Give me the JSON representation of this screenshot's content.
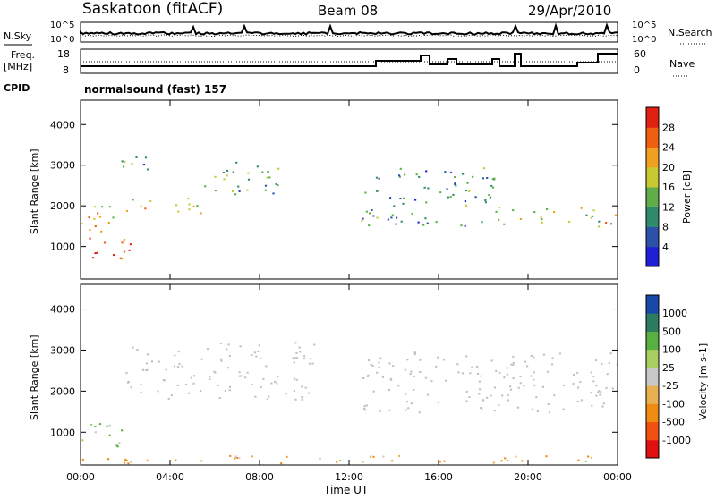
{
  "header": {
    "station": "Saskatoon (fitACF)",
    "beam": "Beam 08",
    "date": "29/Apr/2010"
  },
  "top_panels": {
    "nsky_label": "N.Sky",
    "nsearch_label": "N.Search",
    "noise_ticks": [
      "10^5",
      "10^0"
    ],
    "freq_label": "Freq.",
    "freq_unit": "[MHz]",
    "freq_ticks": [
      "18",
      "8"
    ],
    "nave_label": "Nave",
    "nave_ticks": [
      "60",
      "0"
    ],
    "cpid_label": "CPID",
    "cpid_value": "normalsound (fast) 157"
  },
  "colors": {
    "power_scale": [
      "#1f1fd8",
      "#2b52a8",
      "#2f8a6e",
      "#5fae4a",
      "#c8c832",
      "#f0a020",
      "#f06010",
      "#e02010"
    ],
    "velocity_scale": [
      "#e01010",
      "#f05010",
      "#f08a10",
      "#e8b050",
      "#c8c8c8",
      "#a8d060",
      "#58b040",
      "#2c7c60",
      "#1848a8"
    ],
    "ground_scatter": "#c0c0c0"
  },
  "chart_data": [
    {
      "type": "heatmap",
      "title": "Power",
      "xlabel": "Time UT",
      "ylabel": "Slant Range [km]",
      "x_ticks": [
        "00:00",
        "04:00",
        "08:00",
        "12:00",
        "16:00",
        "20:00",
        "00:00"
      ],
      "x_range_hours": [
        0,
        24
      ],
      "y_ticks": [
        1000,
        2000,
        3000,
        4000
      ],
      "y_range_km": [
        200,
        4600
      ],
      "colorbar": {
        "label": "Power [dB]",
        "ticks": [
          4,
          8,
          12,
          16,
          20,
          24,
          28
        ],
        "range": [
          0,
          32
        ]
      },
      "scatter_regions": [
        {
          "t0": 0.0,
          "t1": 2.2,
          "r0": 600,
          "r1": 1300,
          "value": 28
        },
        {
          "t0": 0.0,
          "t1": 1.5,
          "r0": 1300,
          "r1": 2300,
          "value": 20
        },
        {
          "t0": 2.0,
          "t1": 5.5,
          "r0": 1750,
          "r1": 2200,
          "value": 20
        },
        {
          "t0": 5.5,
          "t1": 9.5,
          "r0": 2300,
          "r1": 3100,
          "value": 12
        },
        {
          "t0": 1.2,
          "t1": 3.0,
          "r0": 2900,
          "r1": 3400,
          "value": 10
        },
        {
          "t0": 12.5,
          "t1": 18.5,
          "r0": 1500,
          "r1": 3000,
          "value": 10
        },
        {
          "t0": 18.5,
          "t1": 24.0,
          "r0": 1500,
          "r1": 2000,
          "value": 18
        }
      ]
    },
    {
      "type": "heatmap",
      "title": "Velocity",
      "xlabel": "Time UT",
      "ylabel": "Slant Range [km]",
      "x_ticks": [
        "00:00",
        "04:00",
        "08:00",
        "12:00",
        "16:00",
        "20:00",
        "00:00"
      ],
      "x_range_hours": [
        0,
        24
      ],
      "y_ticks": [
        1000,
        2000,
        3000,
        4000
      ],
      "y_range_km": [
        200,
        4600
      ],
      "colorbar": {
        "label": "Velocity [m s-1]",
        "ticks": [
          1000,
          500,
          100,
          25,
          -25,
          -100,
          -500,
          -1000
        ],
        "range": [
          -1000,
          1000
        ]
      },
      "scatter_regions": [
        {
          "t0": 0.0,
          "t1": 2.0,
          "r0": 600,
          "r1": 1300,
          "value": 100
        },
        {
          "t0": 2.0,
          "t1": 10.5,
          "r0": 1800,
          "r1": 3200,
          "value": 0
        },
        {
          "t0": 12.5,
          "t1": 24.0,
          "r0": 1500,
          "r1": 3000,
          "value": 0
        },
        {
          "t0": 0.0,
          "t1": 24.0,
          "r0": 250,
          "r1": 450,
          "value": -100
        }
      ]
    }
  ]
}
